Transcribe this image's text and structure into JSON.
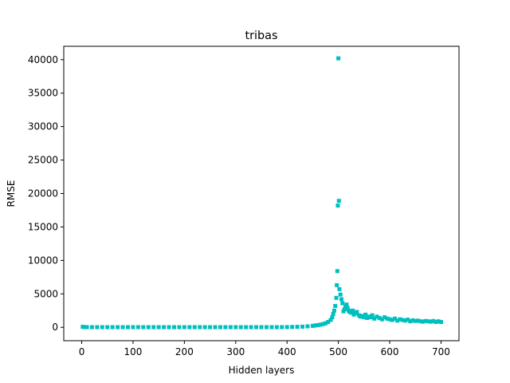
{
  "chart_data": {
    "type": "scatter",
    "title": "tribas",
    "xlabel": "Hidden layers",
    "ylabel": "RMSE",
    "xlim": [
      -35,
      735
    ],
    "ylim": [
      -2000,
      42000
    ],
    "xticks": [
      0,
      100,
      200,
      300,
      400,
      500,
      600,
      700
    ],
    "yticks": [
      0,
      5000,
      10000,
      15000,
      20000,
      25000,
      30000,
      35000,
      40000
    ],
    "grid": false,
    "legend": "none",
    "marker": "square",
    "color": "#00bfbf",
    "series": [
      {
        "points": [
          [
            2,
            80
          ],
          [
            5,
            40
          ],
          [
            10,
            30
          ],
          [
            20,
            25
          ],
          [
            30,
            25
          ],
          [
            40,
            25
          ],
          [
            50,
            25
          ],
          [
            60,
            25
          ],
          [
            70,
            25
          ],
          [
            80,
            25
          ],
          [
            90,
            25
          ],
          [
            100,
            25
          ],
          [
            110,
            25
          ],
          [
            120,
            25
          ],
          [
            130,
            25
          ],
          [
            140,
            25
          ],
          [
            150,
            25
          ],
          [
            160,
            25
          ],
          [
            170,
            25
          ],
          [
            180,
            25
          ],
          [
            190,
            25
          ],
          [
            200,
            25
          ],
          [
            210,
            25
          ],
          [
            220,
            25
          ],
          [
            230,
            25
          ],
          [
            240,
            25
          ],
          [
            250,
            25
          ],
          [
            260,
            25
          ],
          [
            270,
            25
          ],
          [
            280,
            25
          ],
          [
            290,
            25
          ],
          [
            300,
            25
          ],
          [
            310,
            25
          ],
          [
            320,
            25
          ],
          [
            330,
            25
          ],
          [
            340,
            25
          ],
          [
            350,
            25
          ],
          [
            360,
            25
          ],
          [
            370,
            25
          ],
          [
            380,
            25
          ],
          [
            390,
            30
          ],
          [
            400,
            40
          ],
          [
            410,
            60
          ],
          [
            420,
            80
          ],
          [
            430,
            100
          ],
          [
            440,
            150
          ],
          [
            450,
            220
          ],
          [
            455,
            280
          ],
          [
            460,
            330
          ],
          [
            465,
            400
          ],
          [
            470,
            480
          ],
          [
            475,
            600
          ],
          [
            480,
            800
          ],
          [
            485,
            1100
          ],
          [
            488,
            1500
          ],
          [
            490,
            2000
          ],
          [
            492,
            2500
          ],
          [
            494,
            3200
          ],
          [
            496,
            4400
          ],
          [
            497,
            6300
          ],
          [
            498,
            8400
          ],
          [
            499,
            18200
          ],
          [
            500,
            40200
          ],
          [
            501,
            18900
          ],
          [
            502,
            5700
          ],
          [
            504,
            4900
          ],
          [
            506,
            4200
          ],
          [
            508,
            3600
          ],
          [
            510,
            2400
          ],
          [
            512,
            2700
          ],
          [
            514,
            3100
          ],
          [
            516,
            3400
          ],
          [
            518,
            2900
          ],
          [
            520,
            2500
          ],
          [
            522,
            2300
          ],
          [
            525,
            2200
          ],
          [
            528,
            2500
          ],
          [
            530,
            1900
          ],
          [
            533,
            2100
          ],
          [
            536,
            2300
          ],
          [
            540,
            1800
          ],
          [
            543,
            1600
          ],
          [
            546,
            1700
          ],
          [
            550,
            1500
          ],
          [
            553,
            1900
          ],
          [
            556,
            1400
          ],
          [
            560,
            1600
          ],
          [
            563,
            1500
          ],
          [
            566,
            1800
          ],
          [
            570,
            1300
          ],
          [
            575,
            1600
          ],
          [
            580,
            1400
          ],
          [
            585,
            1200
          ],
          [
            590,
            1500
          ],
          [
            595,
            1300
          ],
          [
            600,
            1200
          ],
          [
            605,
            1100
          ],
          [
            610,
            1300
          ],
          [
            615,
            1000
          ],
          [
            620,
            1200
          ],
          [
            625,
            1100
          ],
          [
            630,
            1000
          ],
          [
            635,
            1150
          ],
          [
            640,
            900
          ],
          [
            645,
            1050
          ],
          [
            650,
            950
          ],
          [
            655,
            1000
          ],
          [
            660,
            900
          ],
          [
            665,
            850
          ],
          [
            670,
            950
          ],
          [
            675,
            900
          ],
          [
            680,
            850
          ],
          [
            685,
            950
          ],
          [
            690,
            800
          ],
          [
            695,
            900
          ],
          [
            700,
            800
          ]
        ]
      }
    ]
  }
}
